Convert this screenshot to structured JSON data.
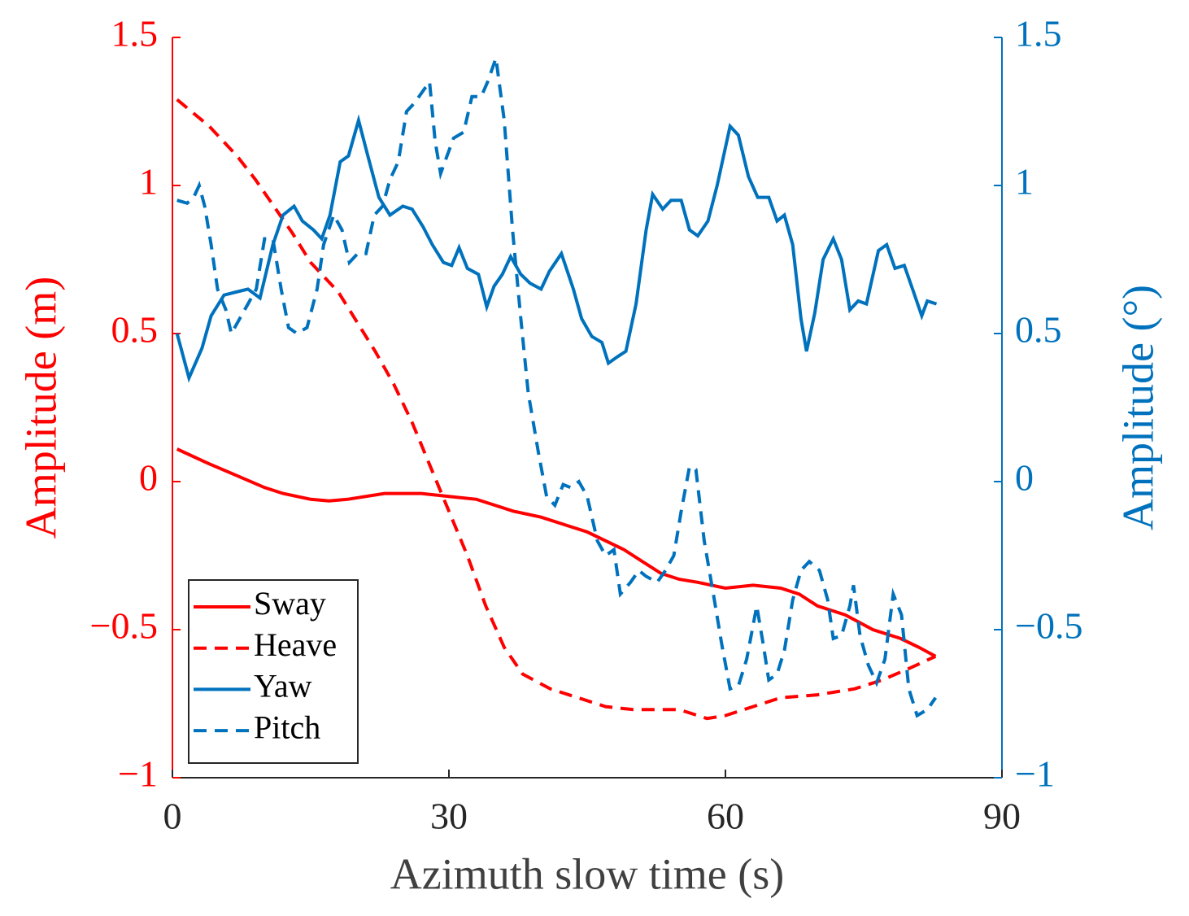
{
  "chart_data": {
    "type": "line",
    "xlabel": "Azimuth slow time (s)",
    "ylabel": "Amplitude (m)",
    "y2label": "Amplitude (°)",
    "xlim": [
      0,
      90
    ],
    "xticks": [
      0,
      30,
      60,
      90
    ],
    "ylim": [
      -1,
      1.5
    ],
    "yticks": [
      {
        "value": -1,
        "label": "−1"
      },
      {
        "value": -0.5,
        "label": "−0.5"
      },
      0,
      0.5,
      1,
      1.5
    ],
    "y2lim": [
      -1,
      1.5
    ],
    "y2ticks": [
      {
        "value": -1,
        "label": "−1"
      },
      {
        "value": -0.5,
        "label": "−0.5"
      },
      0,
      0.5,
      1,
      1.5
    ],
    "ycolor": "#ff0000",
    "y2color": "#0072bd",
    "legend": "lower left",
    "series": [
      {
        "name": "Sway",
        "color": "#ff0000",
        "linestyle": "solid",
        "axis": "y",
        "x": [
          0.5,
          4,
          7,
          10,
          12,
          15,
          17,
          19,
          23,
          27,
          30,
          33,
          35,
          37,
          40,
          43,
          45,
          47,
          49,
          51,
          53,
          55,
          57,
          60,
          63,
          66,
          68,
          70,
          73,
          76,
          79,
          81,
          82.8
        ],
        "values": [
          0.11,
          0.06,
          0.02,
          -0.02,
          -0.04,
          -0.06,
          -0.065,
          -0.06,
          -0.04,
          -0.04,
          -0.05,
          -0.06,
          -0.08,
          -0.1,
          -0.12,
          -0.15,
          -0.17,
          -0.2,
          -0.23,
          -0.27,
          -0.31,
          -0.33,
          -0.34,
          -0.36,
          -0.35,
          -0.36,
          -0.38,
          -0.42,
          -0.45,
          -0.5,
          -0.53,
          -0.56,
          -0.59
        ]
      },
      {
        "name": "Heave",
        "color": "#ff0000",
        "linestyle": "dashed",
        "axis": "y",
        "x": [
          0.5,
          4,
          7,
          9,
          11,
          13,
          15,
          18,
          20,
          22,
          24,
          26,
          28,
          30,
          32,
          34,
          36,
          38,
          41,
          44,
          47,
          50,
          55,
          58,
          60,
          63,
          66,
          70,
          74,
          77,
          80,
          82.8
        ],
        "values": [
          1.29,
          1.2,
          1.1,
          1.02,
          0.93,
          0.84,
          0.74,
          0.64,
          0.54,
          0.44,
          0.33,
          0.2,
          0.05,
          -0.1,
          -0.25,
          -0.42,
          -0.56,
          -0.65,
          -0.7,
          -0.73,
          -0.76,
          -0.77,
          -0.77,
          -0.8,
          -0.79,
          -0.76,
          -0.73,
          -0.72,
          -0.7,
          -0.67,
          -0.63,
          -0.59
        ]
      },
      {
        "name": "Yaw",
        "color": "#0072bd",
        "linestyle": "solid",
        "axis": "y2",
        "x": [
          0.5,
          1.8,
          3.2,
          4.2,
          5.6,
          6.9,
          8.2,
          9.5,
          10.9,
          12.0,
          13.2,
          14.1,
          15.3,
          16.2,
          17.1,
          18.2,
          19.1,
          20.2,
          21.2,
          22.4,
          23.6,
          25.0,
          26.0,
          27.2,
          28.2,
          29.4,
          30.3,
          31.1,
          32.0,
          33.2,
          34.1,
          34.9,
          35.8,
          36.7,
          37.8,
          38.8,
          40.0,
          40.9,
          42.2,
          43.5,
          44.4,
          45.5,
          46.6,
          47.3,
          48.2,
          49.2,
          50.3,
          51.4,
          52.1,
          53.2,
          54.1,
          55.2,
          56.1,
          57.0,
          58.1,
          59.1,
          60.5,
          61.4,
          62.5,
          63.5,
          64.7,
          65.6,
          66.4,
          67.3,
          68.2,
          68.8,
          69.7,
          70.6,
          71.7,
          72.6,
          73.5,
          74.4,
          75.3,
          76.6,
          77.5,
          78.4,
          79.4,
          80.3,
          81.3,
          81.9,
          82.9
        ],
        "values": [
          0.5,
          0.35,
          0.45,
          0.56,
          0.63,
          0.64,
          0.65,
          0.62,
          0.8,
          0.9,
          0.93,
          0.88,
          0.85,
          0.82,
          0.9,
          1.08,
          1.1,
          1.22,
          1.1,
          0.96,
          0.9,
          0.93,
          0.92,
          0.86,
          0.8,
          0.74,
          0.73,
          0.79,
          0.72,
          0.7,
          0.59,
          0.66,
          0.7,
          0.76,
          0.7,
          0.67,
          0.65,
          0.71,
          0.77,
          0.65,
          0.55,
          0.49,
          0.47,
          0.4,
          0.42,
          0.44,
          0.6,
          0.85,
          0.97,
          0.92,
          0.95,
          0.95,
          0.85,
          0.83,
          0.88,
          1.0,
          1.2,
          1.17,
          1.03,
          0.96,
          0.96,
          0.88,
          0.9,
          0.8,
          0.55,
          0.44,
          0.57,
          0.75,
          0.82,
          0.75,
          0.58,
          0.61,
          0.6,
          0.78,
          0.8,
          0.72,
          0.73,
          0.65,
          0.56,
          0.61,
          0.6
        ]
      },
      {
        "name": "Pitch",
        "color": "#0072bd",
        "linestyle": "dashed",
        "axis": "y2",
        "x": [
          0.5,
          1.6,
          2.3,
          2.9,
          3.5,
          4.2,
          4.9,
          5.8,
          6.4,
          7.3,
          8.2,
          9.1,
          10.0,
          10.9,
          11.8,
          12.6,
          13.5,
          14.6,
          15.7,
          16.4,
          17.5,
          18.4,
          19.2,
          20.1,
          21.0,
          21.9,
          22.8,
          23.6,
          24.5,
          25.4,
          26.3,
          27.2,
          27.9,
          28.5,
          29.1,
          29.8,
          30.5,
          31.6,
          32.5,
          33.5,
          34.2,
          35.1,
          36.0,
          36.9,
          37.8,
          38.6,
          39.7,
          40.6,
          41.5,
          42.4,
          43.2,
          44.1,
          45.0,
          46.1,
          47.0,
          47.9,
          48.6,
          49.7,
          50.6,
          51.4,
          52.6,
          53.5,
          54.4,
          55.2,
          56.1,
          56.8,
          57.7,
          58.8,
          59.6,
          60.5,
          61.4,
          62.3,
          63.4,
          64.1,
          64.7,
          65.6,
          66.4,
          67.3,
          68.2,
          69.1,
          70.2,
          71.1,
          71.7,
          72.6,
          73.5,
          73.9,
          74.6,
          75.5,
          76.4,
          77.3,
          78.2,
          79.1,
          79.9,
          80.8,
          81.9,
          82.8
        ],
        "values": [
          0.95,
          0.94,
          0.96,
          1.0,
          0.93,
          0.8,
          0.65,
          0.58,
          0.5,
          0.55,
          0.6,
          0.65,
          0.82,
          0.82,
          0.65,
          0.52,
          0.5,
          0.52,
          0.65,
          0.8,
          0.9,
          0.85,
          0.74,
          0.77,
          0.77,
          0.9,
          0.93,
          1.02,
          1.08,
          1.25,
          1.28,
          1.32,
          1.35,
          1.15,
          1.04,
          1.1,
          1.16,
          1.18,
          1.3,
          1.3,
          1.35,
          1.43,
          1.22,
          0.85,
          0.55,
          0.3,
          0.1,
          -0.05,
          -0.08,
          -0.01,
          -0.02,
          0.0,
          -0.05,
          -0.2,
          -0.25,
          -0.23,
          -0.38,
          -0.34,
          -0.3,
          -0.32,
          -0.34,
          -0.3,
          -0.25,
          -0.1,
          0.05,
          0.04,
          -0.2,
          -0.4,
          -0.55,
          -0.7,
          -0.69,
          -0.6,
          -0.42,
          -0.55,
          -0.67,
          -0.65,
          -0.57,
          -0.4,
          -0.3,
          -0.27,
          -0.3,
          -0.4,
          -0.53,
          -0.52,
          -0.42,
          -0.35,
          -0.52,
          -0.62,
          -0.68,
          -0.6,
          -0.38,
          -0.45,
          -0.7,
          -0.79,
          -0.77,
          -0.73
        ]
      }
    ]
  }
}
